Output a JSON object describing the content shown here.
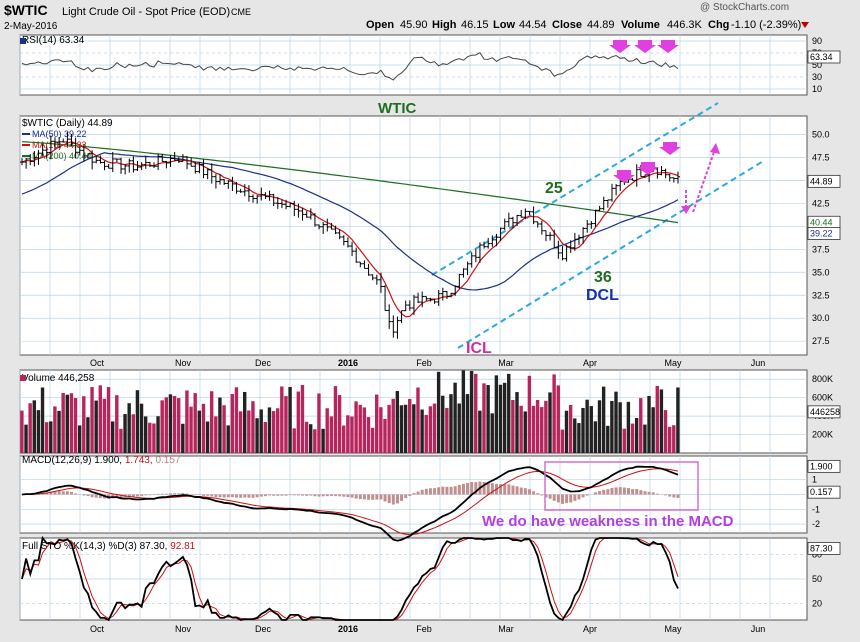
{
  "header": {
    "symbol": "$WTIC",
    "description": "Light Crude Oil - Spot Price (EOD)",
    "exchange": "CME",
    "date": "2-May-2016",
    "open_label": "Open",
    "open": "45.90",
    "high_label": "High",
    "high": "46.15",
    "low_label": "Low",
    "low": "44.54",
    "close_label": "Close",
    "close": "44.89",
    "volume_label": "Volume",
    "volume": "446.3K",
    "chg_label": "Chg",
    "chg": "-1.10 (-2.39%)",
    "watermark": "@ StockCharts.com"
  },
  "colors": {
    "background": "#ffffff",
    "panel_bg": "#ffffff",
    "grid": "#b8d4e6",
    "price_bar": "#000000",
    "ma50": "#1f2f8a",
    "ma10": "#d01010",
    "ma200": "#1e6e1e",
    "volume_bar": "#b8245c",
    "annotation_magenta": "#e040e0",
    "annotation_blue": "#2aa8e0",
    "text_green": "#1f6e1f",
    "text_blue": "#1030b0",
    "text_pink": "#d0309a",
    "macd_box": "#d070d0",
    "macd_text": "#b040e0"
  },
  "x_axis": {
    "labels": [
      "Oct",
      "Nov",
      "Dec",
      "2016",
      "Feb",
      "Mar",
      "Apr",
      "May",
      "Jun"
    ]
  },
  "panels": {
    "rsi": {
      "label": "RSI(14) 63.34",
      "ticks": [
        "90",
        "70",
        "50",
        "30",
        "10"
      ],
      "value_tag": "63.34",
      "annotation": "WTIC"
    },
    "price": {
      "label": "$WTIC (Daily) 44.89",
      "legend": [
        {
          "text": "MA(50) 39.22",
          "color": "#1f2f8a"
        },
        {
          "text": "MA(10) 44.33",
          "color": "#d01010"
        },
        {
          "text": "MA(200) 40.44",
          "color": "#1e6e1e"
        }
      ],
      "ticks": [
        "50.0",
        "47.5",
        "45.0",
        "42.5",
        "40.0",
        "37.5",
        "35.0",
        "32.5",
        "30.0",
        "27.5"
      ],
      "tags": [
        "44.89",
        "40.44",
        "39.22"
      ],
      "annotations": {
        "count25": "25",
        "count36": "36",
        "dcl": "DCL",
        "icl": "ICL"
      }
    },
    "volume": {
      "label": "Volume 446,258",
      "ticks": [
        "800K",
        "600K",
        "400K",
        "200K"
      ],
      "value_tag": "446258"
    },
    "macd": {
      "label": "MACD(12,26,9) 1.900, 1.743, 0.157",
      "label_parts": [
        "MACD(12,26,9) 1.900,",
        "1.743,",
        "0.157"
      ],
      "ticks": [
        "1",
        "0",
        "-1",
        "-2"
      ],
      "tags": [
        "1.900",
        "0.157"
      ],
      "annotation": "We do have weakness in the MACD"
    },
    "sto": {
      "label": "Full STO %K(14,3) %D(3) 87.30, 92.81",
      "label_parts": [
        "Full STO %K(14,3) %D(3) 87.30,",
        "92.81"
      ],
      "ticks": [
        "80",
        "50",
        "20"
      ],
      "value_tag": "87.30"
    }
  },
  "chart_data": {
    "type": "line",
    "title": "$WTIC Light Crude Oil - Spot Price (EOD) CME",
    "x": [
      "Oct",
      "Nov",
      "Dec",
      "2016",
      "Feb",
      "Mar",
      "Apr",
      "May"
    ],
    "series": [
      {
        "name": "$WTIC (Daily)",
        "values": [
          47.5,
          45.5,
          40.0,
          36.5,
          30.5,
          33.0,
          37.0,
          45.5
        ]
      },
      {
        "name": "MA(50)",
        "values": [
          44.5,
          46.0,
          44.0,
          38.5,
          33.0,
          32.0,
          34.0,
          39.0
        ]
      },
      {
        "name": "MA(10)",
        "values": [
          47.0,
          45.5,
          41.0,
          36.0,
          31.0,
          32.5,
          38.0,
          44.3
        ]
      },
      {
        "name": "MA(200)",
        "values": [
          49.0,
          48.5,
          47.0,
          45.0,
          43.5,
          42.0,
          41.0,
          40.4
        ]
      }
    ],
    "ylim": [
      26,
      52
    ],
    "last": {
      "close": 44.89,
      "ma50": 39.22,
      "ma10": 44.33,
      "ma200": 40.44,
      "rsi": 63.34,
      "volume": 446258,
      "macd": 1.9,
      "macd_signal": 1.743,
      "macd_hist": 0.157,
      "sto_k": 87.3,
      "sto_d": 92.81
    }
  }
}
